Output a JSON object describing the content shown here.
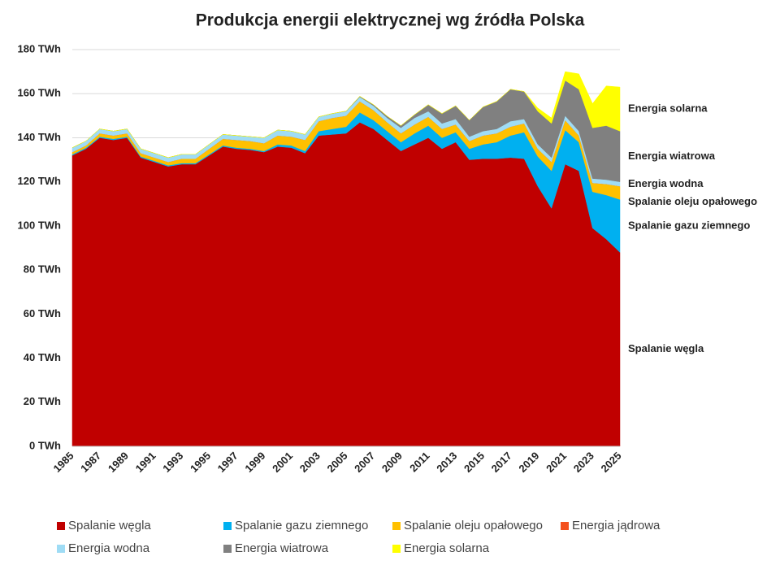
{
  "chart_data": {
    "type": "stacked_area",
    "title": "Produkcja energii elektrycznej wg źródła Polska",
    "categories": [
      "1985",
      null,
      "1987",
      null,
      "1989",
      null,
      "1991",
      null,
      "1993",
      null,
      "1995",
      null,
      "1997",
      null,
      "1999",
      null,
      "2001",
      null,
      "2003",
      null,
      "2005",
      null,
      "2007",
      null,
      "2009",
      null,
      "2011",
      null,
      "2013",
      null,
      "2015",
      null,
      "2017",
      null,
      "2019",
      null,
      "2021",
      null,
      "2023",
      null,
      "2025"
    ],
    "series": [
      {
        "name": "Spalanie węgla",
        "color": "#c00000",
        "values": [
          132,
          135,
          140,
          139,
          140,
          131,
          129,
          127,
          128,
          128,
          132,
          136,
          135,
          134.5,
          133.5,
          136,
          135.5,
          133,
          141,
          141.5,
          142,
          147,
          144,
          139,
          134,
          137,
          140,
          135,
          138,
          130,
          130.5,
          130.5,
          131,
          130.5,
          118,
          108,
          128,
          125,
          99,
          94,
          88
        ]
      },
      {
        "name": "Spalanie gazu ziemnego",
        "color": "#00b0f0",
        "values": [
          0.5,
          0.5,
          0.5,
          0.5,
          0.5,
          0.5,
          0.5,
          0.5,
          0.5,
          0.5,
          0.5,
          0.5,
          0.5,
          0.5,
          0.5,
          1,
          1,
          1,
          2,
          2.5,
          3,
          4.5,
          4,
          4,
          4,
          5,
          5.5,
          5,
          4.5,
          5,
          6.5,
          7.5,
          10,
          12,
          13.5,
          17,
          15.5,
          13,
          16.5,
          20,
          24
        ]
      },
      {
        "name": "Spalanie oleju opałowego",
        "color": "#ffc000",
        "values": [
          1,
          1,
          1.5,
          1.5,
          1.5,
          1.5,
          1.5,
          1.5,
          2,
          2,
          2.5,
          3,
          3.5,
          3.5,
          3.5,
          4,
          4,
          5,
          4.5,
          5,
          5,
          5,
          4.5,
          4,
          4,
          4,
          4,
          4,
          3.5,
          3.5,
          4,
          4,
          4,
          4,
          3.5,
          4,
          4.5,
          3,
          4,
          5,
          6
        ]
      },
      {
        "name": "Energia jądrowa",
        "color": "#f4511e",
        "values": [
          0,
          0,
          0,
          0,
          0,
          0,
          0,
          0,
          0,
          0,
          0,
          0,
          0,
          0,
          0,
          0,
          0,
          0,
          0,
          0,
          0,
          0,
          0,
          0,
          0,
          0,
          0,
          0,
          0,
          0,
          0,
          0,
          0,
          0,
          0,
          0,
          0,
          0,
          0,
          0,
          0
        ]
      },
      {
        "name": "Energia wodna",
        "color": "#9fdcf5",
        "values": [
          2,
          2,
          2,
          2,
          2,
          2,
          2,
          2,
          2,
          2,
          2,
          2,
          2,
          2,
          2.5,
          2.5,
          2.5,
          2.5,
          2,
          2,
          2,
          2,
          2,
          2,
          2.5,
          3,
          2.5,
          2.5,
          2.5,
          2,
          2,
          2,
          2.5,
          2,
          2,
          2,
          2,
          2,
          2,
          2,
          2
        ]
      },
      {
        "name": "Energia wiatrowa",
        "color": "#808080",
        "values": [
          0,
          0,
          0,
          0,
          0,
          0,
          0,
          0,
          0,
          0,
          0,
          0,
          0,
          0,
          0,
          0,
          0,
          0,
          0,
          0,
          0.1,
          0.3,
          0.5,
          0.8,
          1,
          1.5,
          3,
          4.5,
          6,
          7.5,
          11,
          12.5,
          14.5,
          12.5,
          15,
          15.5,
          16,
          19,
          23,
          24.5,
          23
        ]
      },
      {
        "name": "Energia solarna",
        "color": "#ffff00",
        "values": [
          0,
          0,
          0,
          0,
          0,
          0,
          0,
          0,
          0,
          0,
          0,
          0,
          0,
          0,
          0,
          0,
          0,
          0,
          0,
          0,
          0,
          0,
          0,
          0,
          0,
          0,
          0,
          0,
          0,
          0,
          0,
          0,
          0,
          0,
          1.5,
          2.5,
          4,
          7,
          11,
          18,
          20
        ]
      }
    ],
    "ylim": [
      0,
      180
    ],
    "yticks": [
      {
        "value": 0,
        "label": "0 TWh"
      },
      {
        "value": 20,
        "label": "20 TWh"
      },
      {
        "value": 40,
        "label": "40 TWh"
      },
      {
        "value": 60,
        "label": "60 TWh"
      },
      {
        "value": 80,
        "label": "80 TWh"
      },
      {
        "value": 100,
        "label": "100 TWh"
      },
      {
        "value": 120,
        "label": "120 TWh"
      },
      {
        "value": 140,
        "label": "140 TWh"
      },
      {
        "value": 160,
        "label": "160 TWh"
      },
      {
        "value": 180,
        "label": "180 TWh"
      }
    ],
    "grid": true
  }
}
